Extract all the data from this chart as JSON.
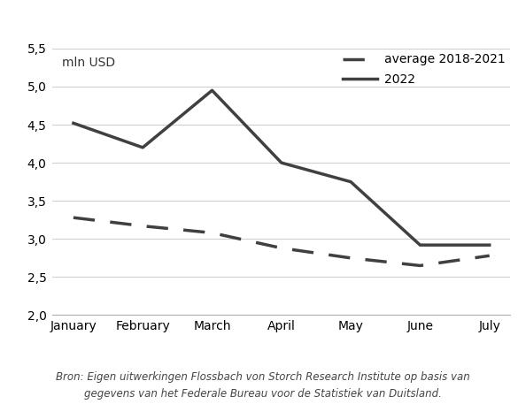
{
  "months": [
    "January",
    "February",
    "March",
    "April",
    "May",
    "June",
    "July"
  ],
  "series_2022": [
    4.52,
    4.2,
    4.95,
    4.0,
    3.75,
    2.92,
    2.92
  ],
  "series_avg_7": [
    3.28,
    3.17,
    3.08,
    2.88,
    2.75,
    2.65,
    2.78
  ],
  "ylim": [
    2.0,
    5.5
  ],
  "yticks": [
    2.0,
    2.5,
    3.0,
    3.5,
    4.0,
    4.5,
    5.0,
    5.5
  ],
  "ylabel": "mln USD",
  "color_line": "#404040",
  "legend_avg": "average 2018-2021",
  "legend_2022": "2022",
  "footnote_line1": "Bron: Eigen uitwerkingen Flossbach von Storch Research Institute op basis van",
  "footnote_line2": "gegevens van het Federale Bureau voor de Statistiek van Duitsland.",
  "background_color": "#ffffff",
  "grid_color": "#d0d0d0",
  "line_width": 2.5,
  "font_size_ticks": 10,
  "font_size_footnote": 8.5
}
